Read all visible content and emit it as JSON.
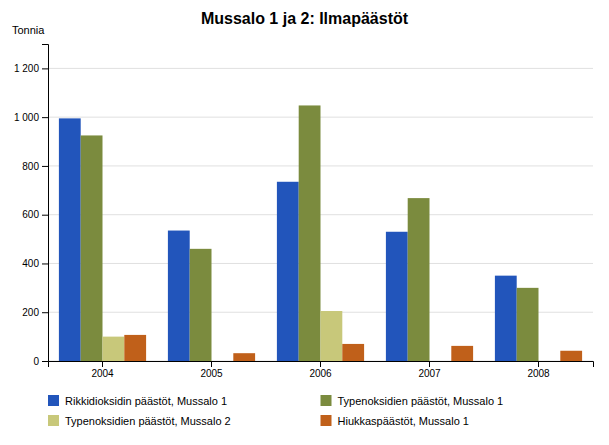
{
  "chart_data": {
    "type": "bar",
    "title": "Mussalo 1 ja 2: Ilmapäästöt",
    "ylabel": "Tonnia",
    "categories": [
      "2004",
      "2005",
      "2006",
      "2007",
      "2008"
    ],
    "series": [
      {
        "name": "Rikkidioksidin päästöt, Mussalo 1",
        "color": "#2255BB",
        "values": [
          995,
          535,
          735,
          530,
          350
        ]
      },
      {
        "name": "Typenoksidien päästöt, Mussalo 1",
        "color": "#7B8B3E",
        "values": [
          925,
          460,
          1048,
          668,
          300
        ]
      },
      {
        "name": "Typenoksidien päästöt, Mussalo 2",
        "color": "#C8C87A",
        "values": [
          100,
          0,
          205,
          0,
          0
        ]
      },
      {
        "name": "Hiukkaspäästöt, Mussalo 1",
        "color": "#C0601A",
        "values": [
          107,
          32,
          70,
          62,
          42
        ]
      }
    ],
    "ylim": [
      0,
      1300
    ],
    "yticks": [
      0,
      200,
      400,
      600,
      800,
      {
        "value": 1000,
        "label": "1 000"
      },
      {
        "value": 1200,
        "label": "1 200"
      }
    ],
    "grid": true,
    "legend": "bottom"
  }
}
